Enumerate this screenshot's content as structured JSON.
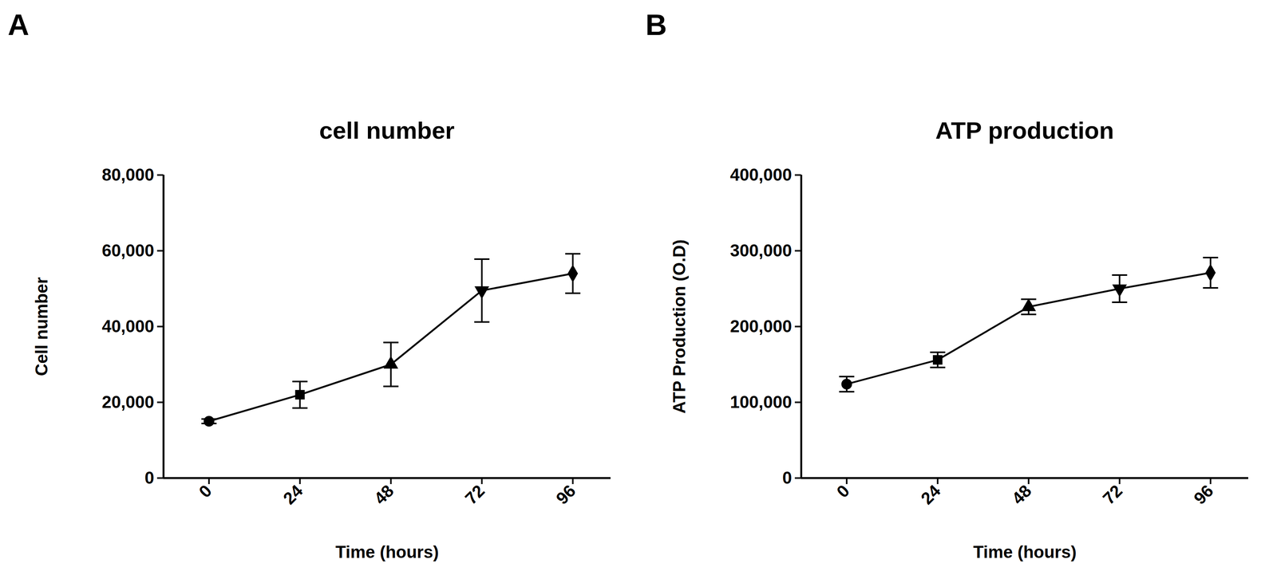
{
  "chart_data": [
    {
      "panel_label": "A",
      "type": "line",
      "title": "cell number",
      "x_label": "Time (hours)",
      "y_label": "Cell number",
      "x": [
        0,
        24,
        48,
        72,
        96
      ],
      "values": [
        15000,
        22000,
        30000,
        49500,
        54000
      ],
      "errors": [
        600,
        3500,
        5800,
        8300,
        5200
      ],
      "color": "#000000",
      "marker": "varied",
      "xlim": [
        -12,
        106
      ],
      "xticks": [
        0,
        24,
        48,
        72,
        96
      ],
      "ylim": [
        0,
        80000
      ],
      "yticks": [
        0,
        {
          "value": 20000,
          "label": "20,000"
        },
        {
          "value": 40000,
          "label": "40,000"
        },
        {
          "value": 60000,
          "label": "60,000"
        },
        {
          "value": 80000,
          "label": "80,000"
        }
      ],
      "grid": false
    },
    {
      "panel_label": "B",
      "type": "line",
      "title": "ATP production",
      "x_label": "Time (hours)",
      "y_label": "ATP Production (O.D)",
      "x": [
        0,
        24,
        48,
        72,
        96
      ],
      "values": [
        124000,
        156000,
        226000,
        250000,
        271000
      ],
      "errors": [
        10000,
        10000,
        10000,
        18000,
        20000
      ],
      "color": "#000000",
      "marker": "varied",
      "xlim": [
        -12,
        106
      ],
      "xticks": [
        0,
        24,
        48,
        72,
        96
      ],
      "ylim": [
        0,
        400000
      ],
      "yticks": [
        0,
        {
          "value": 100000,
          "label": "100,000"
        },
        {
          "value": 200000,
          "label": "200,000"
        },
        {
          "value": 300000,
          "label": "300,000"
        },
        {
          "value": 400000,
          "label": "400,000"
        }
      ],
      "grid": false
    }
  ]
}
